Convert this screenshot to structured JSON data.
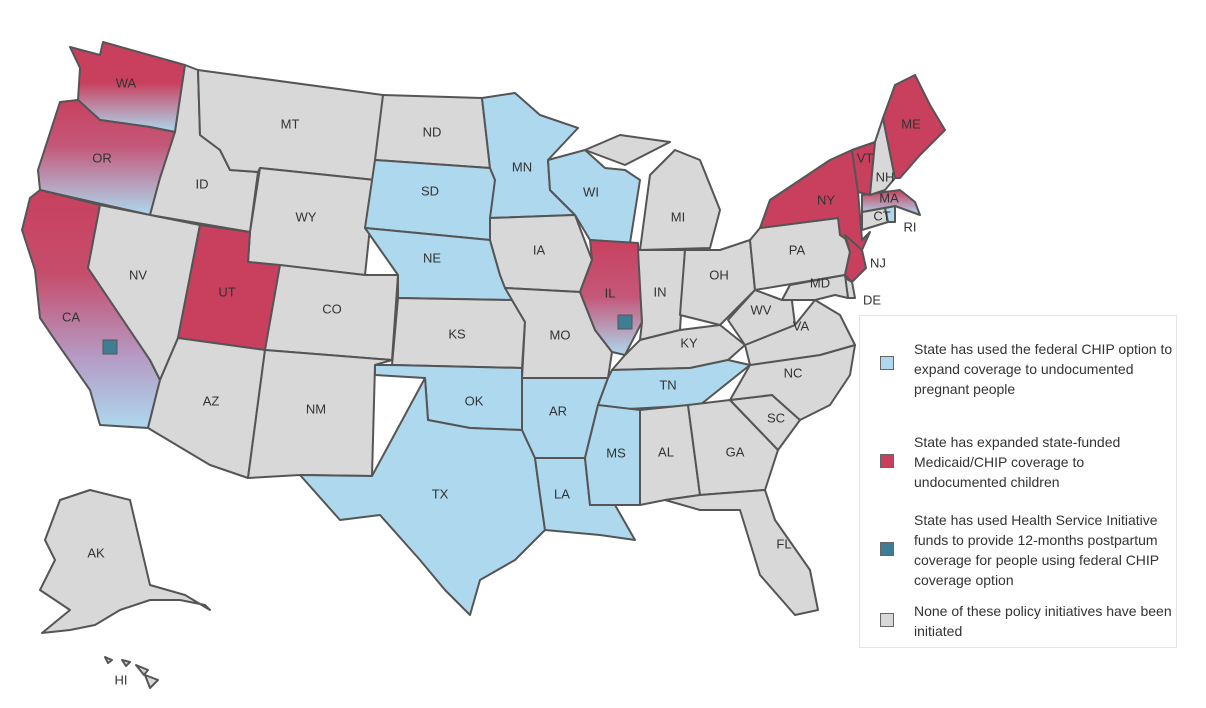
{
  "colors": {
    "chip_option": "#add8ee",
    "state_funded": "#c9405f",
    "hsi_postpartum": "#3f7d95",
    "none": "#d8d8d8",
    "border": "#555555"
  },
  "states": [
    {
      "abbr": "WA",
      "category": "state_funded",
      "gradient": "wa"
    },
    {
      "abbr": "OR",
      "category": "state_funded",
      "gradient": "or"
    },
    {
      "abbr": "CA",
      "category": "state_funded",
      "gradient": "ca",
      "hsi": true
    },
    {
      "abbr": "ID",
      "category": "none"
    },
    {
      "abbr": "NV",
      "category": "none"
    },
    {
      "abbr": "MT",
      "category": "none"
    },
    {
      "abbr": "WY",
      "category": "none"
    },
    {
      "abbr": "UT",
      "category": "state_funded"
    },
    {
      "abbr": "CO",
      "category": "none"
    },
    {
      "abbr": "AZ",
      "category": "none"
    },
    {
      "abbr": "NM",
      "category": "none"
    },
    {
      "abbr": "ND",
      "category": "none"
    },
    {
      "abbr": "SD",
      "category": "chip_option"
    },
    {
      "abbr": "NE",
      "category": "chip_option"
    },
    {
      "abbr": "KS",
      "category": "none"
    },
    {
      "abbr": "OK",
      "category": "chip_option"
    },
    {
      "abbr": "TX",
      "category": "chip_option"
    },
    {
      "abbr": "MN",
      "category": "chip_option"
    },
    {
      "abbr": "IA",
      "category": "none"
    },
    {
      "abbr": "MO",
      "category": "none"
    },
    {
      "abbr": "AR",
      "category": "chip_option"
    },
    {
      "abbr": "LA",
      "category": "chip_option"
    },
    {
      "abbr": "WI",
      "category": "chip_option"
    },
    {
      "abbr": "IL",
      "category": "state_funded",
      "gradient": "il",
      "hsi": true
    },
    {
      "abbr": "MI",
      "category": "none"
    },
    {
      "abbr": "IN",
      "category": "none"
    },
    {
      "abbr": "OH",
      "category": "none"
    },
    {
      "abbr": "KY",
      "category": "none"
    },
    {
      "abbr": "TN",
      "category": "chip_option"
    },
    {
      "abbr": "MS",
      "category": "chip_option"
    },
    {
      "abbr": "AL",
      "category": "none"
    },
    {
      "abbr": "GA",
      "category": "none"
    },
    {
      "abbr": "FL",
      "category": "none"
    },
    {
      "abbr": "SC",
      "category": "none"
    },
    {
      "abbr": "NC",
      "category": "none"
    },
    {
      "abbr": "VA",
      "category": "none"
    },
    {
      "abbr": "WV",
      "category": "none"
    },
    {
      "abbr": "PA",
      "category": "none"
    },
    {
      "abbr": "NY",
      "category": "state_funded"
    },
    {
      "abbr": "NJ",
      "category": "state_funded"
    },
    {
      "abbr": "DE",
      "category": "none"
    },
    {
      "abbr": "MD",
      "category": "none"
    },
    {
      "abbr": "CT",
      "category": "none"
    },
    {
      "abbr": "RI",
      "category": "chip_option"
    },
    {
      "abbr": "MA",
      "category": "state_funded",
      "gradient": "ma"
    },
    {
      "abbr": "VT",
      "category": "state_funded"
    },
    {
      "abbr": "NH",
      "category": "none"
    },
    {
      "abbr": "ME",
      "category": "state_funded"
    },
    {
      "abbr": "AK",
      "category": "none"
    },
    {
      "abbr": "HI",
      "category": "none"
    }
  ],
  "legend": [
    {
      "category": "chip_option",
      "label": "State has used the federal CHIP option to expand coverage to undocumented pregnant people"
    },
    {
      "category": "state_funded",
      "label": "State has expanded state-funded Medicaid/CHIP coverage to undocumented children"
    },
    {
      "category": "hsi_postpartum",
      "label": "State has used Health Service Initiative funds to provide 12-months postpartum coverage for  people using federal CHIP coverage option"
    },
    {
      "category": "none",
      "label": "None of these policy initiatives have been initiated"
    }
  ]
}
